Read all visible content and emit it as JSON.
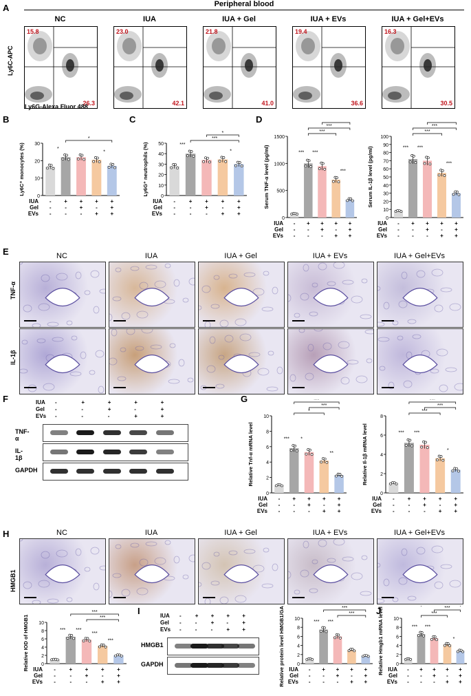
{
  "header": {
    "title": "Peripheral blood"
  },
  "panel_letters": {
    "A": "A",
    "B": "B",
    "C": "C",
    "D": "D",
    "E": "E",
    "F": "F",
    "G": "G",
    "H": "H",
    "I": "I",
    "J": "J"
  },
  "groups": [
    "NC",
    "IUA",
    "IUA + Gel",
    "IUA + EVs",
    "IUA + Gel+EVs"
  ],
  "flow": {
    "ylabel": "Ly6C-APC",
    "xlabel": "Ly6G-Alexa Fluor 488",
    "top_left": [
      "15.8",
      "23.0",
      "21.8",
      "19.4",
      "16.3"
    ],
    "bottom_right": [
      "26.3",
      "42.1",
      "41.0",
      "36.6",
      "30.5"
    ]
  },
  "ihc": {
    "row1": "TNF-α",
    "row2": "IL-1β",
    "row3": "HMGB1"
  },
  "blot_F": {
    "labels": [
      "TNF-α",
      "IL-1β",
      "GAPDH"
    ]
  },
  "blot_I": {
    "labels": [
      "HMGB1",
      "GAPDH"
    ]
  },
  "treatment": {
    "row_labels": [
      "IUA",
      "Gel",
      "EVs"
    ],
    "rows": [
      [
        "-",
        "+",
        "+",
        "+",
        "+"
      ],
      [
        "-",
        "-",
        "+",
        "-",
        "+"
      ],
      [
        "-",
        "-",
        "-",
        "+",
        "+"
      ]
    ]
  },
  "colors": {
    "NC": "#d9d9d9",
    "IUA": "#a6a6a6",
    "IUA+Gel": "#f4b8b8",
    "IUA+EVs": "#f5c9a0",
    "IUA+Gel+EVs": "#b4c7e7",
    "pct": "#c0141c"
  },
  "chart_data": [
    {
      "id": "B",
      "type": "bar",
      "ylabel": "Ly6C⁺ monocytes (%)",
      "ylim": [
        0,
        30
      ],
      "yticks": [
        0,
        10,
        20,
        30
      ],
      "values": [
        16.5,
        22.0,
        22.0,
        20.5,
        17.0
      ],
      "sig": [
        [
          "1",
          "2",
          "*"
        ],
        [
          "2",
          "5",
          "*"
        ],
        [
          "4",
          "5",
          "*"
        ]
      ]
    },
    {
      "id": "C",
      "type": "bar",
      "ylabel": "Ly6G⁺ neutrophils (%)",
      "ylim": [
        0,
        50
      ],
      "yticks": [
        0,
        10,
        20,
        30,
        40,
        50
      ],
      "values": [
        28.0,
        40.0,
        34.0,
        34.5,
        30.0
      ],
      "sig": [
        [
          "1",
          "2",
          "***"
        ],
        [
          "2",
          "5",
          "***"
        ],
        [
          "3",
          "5",
          "*"
        ],
        [
          "4",
          "5",
          "*"
        ]
      ]
    },
    {
      "id": "D1",
      "type": "bar",
      "ylabel": "Serum TNF-α level (pg/ml)",
      "ylim": [
        0,
        1500
      ],
      "yticks": [
        0,
        500,
        1000,
        1500
      ],
      "values": [
        70,
        1000,
        950,
        700,
        330
      ],
      "sig": [
        [
          "1",
          "2",
          "***"
        ],
        [
          "2",
          "3",
          "***"
        ],
        [
          "2",
          "4",
          "***"
        ],
        [
          "2",
          "5",
          "***"
        ],
        [
          "3",
          "5",
          "***"
        ],
        [
          "4",
          "5",
          "***"
        ]
      ]
    },
    {
      "id": "D2",
      "type": "bar",
      "ylabel": "Serum IL-1β level (pg/ml)",
      "ylim": [
        0,
        100
      ],
      "yticks": [
        0,
        10,
        20,
        30,
        40,
        50,
        60,
        70,
        80,
        90,
        100
      ],
      "values": [
        8,
        72,
        70,
        55,
        30
      ],
      "sig": [
        [
          "1",
          "2",
          "***"
        ],
        [
          "2",
          "3",
          "***"
        ],
        [
          "2",
          "4",
          "***"
        ],
        [
          "2",
          "5",
          "***"
        ],
        [
          "3",
          "5",
          "***"
        ],
        [
          "4",
          "5",
          "***"
        ]
      ]
    },
    {
      "id": "G1",
      "type": "bar",
      "ylabel": "Relative Tnf-α mRNA level",
      "ylim": [
        0,
        10
      ],
      "yticks": [
        0,
        2,
        4,
        6,
        8,
        10
      ],
      "values": [
        1.0,
        5.8,
        5.3,
        4.2,
        2.3
      ],
      "sig": [
        [
          "1",
          "2",
          "***"
        ],
        [
          "2",
          "3",
          "*"
        ],
        [
          "2",
          "4",
          "*"
        ],
        [
          "4",
          "5",
          "**"
        ],
        [
          "3",
          "5",
          "***"
        ],
        [
          "2",
          "5",
          "***"
        ]
      ]
    },
    {
      "id": "G2",
      "type": "bar",
      "ylabel": "Relative Il-1β mRNA level",
      "ylim": [
        0,
        8
      ],
      "yticks": [
        0,
        2,
        4,
        6,
        8
      ],
      "values": [
        1.0,
        5.2,
        5.0,
        3.6,
        2.4
      ],
      "sig": [
        [
          "1",
          "2",
          "***"
        ],
        [
          "2",
          "3",
          "***"
        ],
        [
          "2",
          "4",
          "***"
        ],
        [
          "4",
          "5",
          "*"
        ],
        [
          "3",
          "5",
          "***"
        ],
        [
          "2",
          "5",
          "***"
        ]
      ]
    },
    {
      "id": "H",
      "type": "bar",
      "ylabel": "Relative IOD of HMGB1",
      "ylim": [
        0,
        10
      ],
      "yticks": [
        0,
        2,
        4,
        6,
        8,
        10
      ],
      "values": [
        1.0,
        6.5,
        5.8,
        4.3,
        2.0
      ],
      "sig": [
        [
          "1",
          "2",
          "***"
        ],
        [
          "2",
          "3",
          "***"
        ],
        [
          "3",
          "4",
          "***"
        ],
        [
          "4",
          "5",
          "***"
        ],
        [
          "3",
          "5",
          "***"
        ],
        [
          "2",
          "5",
          "***"
        ]
      ]
    },
    {
      "id": "I",
      "type": "bar",
      "ylabel": "Relative protein level HMGB1/GAPDH",
      "ylim": [
        0,
        10
      ],
      "yticks": [
        0,
        2,
        4,
        6,
        8,
        10
      ],
      "values": [
        1.0,
        7.5,
        6.0,
        3.0,
        1.7
      ],
      "sig": [
        [
          "1",
          "2",
          "***"
        ],
        [
          "2",
          "3",
          "***"
        ],
        [
          "3",
          "5",
          "***"
        ],
        [
          "2",
          "5",
          "***"
        ]
      ]
    },
    {
      "id": "J",
      "type": "bar",
      "ylabel": "Relative Hmgb1 mRNA level",
      "ylim": [
        0,
        10
      ],
      "yticks": [
        0,
        2,
        4,
        6,
        8,
        10
      ],
      "values": [
        1.0,
        6.5,
        5.6,
        4.2,
        2.8
      ],
      "sig": [
        [
          "1",
          "2",
          "***"
        ],
        [
          "2",
          "3",
          "***"
        ],
        [
          "2",
          "4",
          "***"
        ],
        [
          "4",
          "5",
          "*"
        ],
        [
          "3",
          "5",
          "***"
        ],
        [
          "2",
          "5",
          "***"
        ]
      ]
    }
  ]
}
